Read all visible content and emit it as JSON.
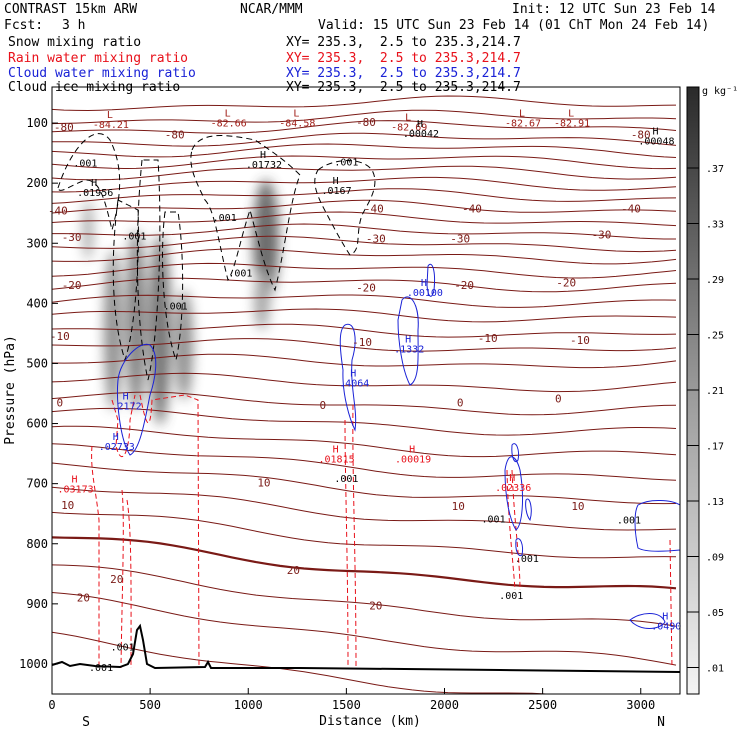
{
  "header": {
    "model": "CONTRAST 15km ARW",
    "org": "NCAR/MMM",
    "init": "Init: 12 UTC Sun 23 Feb 14",
    "fcst_label": "Fcst:",
    "fcst_value": "3 h",
    "valid": "Valid: 15 UTC Sun 23 Feb 14 (01 ChT Mon 24 Feb 14)"
  },
  "legend": [
    {
      "name": "Snow mixing ratio",
      "xy": "XY= 235.3,  2.5 to 235.3,214.7",
      "color": "#000000"
    },
    {
      "name": "Rain water mixing ratio",
      "xy": "XY= 235.3,  2.5 to 235.3,214.7",
      "color": "#e8101a"
    },
    {
      "name": "Cloud water mixing ratio",
      "xy": "XY= 235.3,  2.5 to 235.3,214.7",
      "color": "#1a22d6"
    },
    {
      "name": "Cloud ice mixing ratio",
      "xy": "XY= 235.3,  2.5 to 235.3,214.7",
      "color": "#000000"
    }
  ],
  "chart_data": {
    "type": "cross-section",
    "xlabel": "Distance (km)",
    "ylabel": "Pressure (hPa)",
    "xlim": [
      0,
      3200
    ],
    "ylim": [
      1050,
      40
    ],
    "x_ticks": [
      0,
      500,
      1000,
      1500,
      2000,
      2500,
      3000
    ],
    "y_ticks": [
      100,
      200,
      300,
      400,
      500,
      600,
      700,
      800,
      900,
      1000
    ],
    "left_end_label": "S",
    "right_end_label": "N",
    "colorbar": {
      "unit": "g kg⁻¹",
      "labels": [
        ".37",
        ".33",
        ".29",
        ".25",
        ".21",
        ".17",
        ".13",
        ".09",
        ".05",
        ".01"
      ]
    },
    "temperature_isotherms": {
      "labels": [
        {
          "x": 60,
          "p": 113,
          "text": "-80"
        },
        {
          "x": 625,
          "p": 126,
          "text": "-80"
        },
        {
          "x": 1600,
          "p": 105,
          "text": "-80"
        },
        {
          "x": 3000,
          "p": 126,
          "text": "-80"
        },
        {
          "x": 30,
          "p": 252,
          "text": "-40"
        },
        {
          "x": 1640,
          "p": 249,
          "text": "-40"
        },
        {
          "x": 2140,
          "p": 249,
          "text": "-40"
        },
        {
          "x": 2950,
          "p": 249,
          "text": "-40"
        },
        {
          "x": 100,
          "p": 296,
          "text": "-30"
        },
        {
          "x": 1650,
          "p": 299,
          "text": "-30"
        },
        {
          "x": 2080,
          "p": 299,
          "text": "-30"
        },
        {
          "x": 2800,
          "p": 292,
          "text": "-30"
        },
        {
          "x": 100,
          "p": 376,
          "text": "-20"
        },
        {
          "x": 1600,
          "p": 380,
          "text": "-20"
        },
        {
          "x": 2100,
          "p": 376,
          "text": "-20"
        },
        {
          "x": 2620,
          "p": 372,
          "text": "-20"
        },
        {
          "x": 1580,
          "p": 471,
          "text": "-10"
        },
        {
          "x": 2690,
          "p": 468,
          "text": "-10"
        },
        {
          "x": 40,
          "p": 461,
          "text": "-10"
        },
        {
          "x": 2220,
          "p": 464,
          "text": "-10"
        },
        {
          "x": 40,
          "p": 572,
          "text": "0"
        },
        {
          "x": 1380,
          "p": 576,
          "text": "0"
        },
        {
          "x": 2080,
          "p": 572,
          "text": "0"
        },
        {
          "x": 2580,
          "p": 565,
          "text": "0"
        },
        {
          "x": 1080,
          "p": 705,
          "text": "10"
        },
        {
          "x": 2070,
          "p": 744,
          "text": "10"
        },
        {
          "x": 2680,
          "p": 744,
          "text": "10"
        },
        {
          "x": 80,
          "p": 742,
          "text": "10"
        },
        {
          "x": 1230,
          "p": 850,
          "text": "20"
        },
        {
          "x": 1650,
          "p": 909,
          "text": "20"
        },
        {
          "x": 160,
          "p": 896,
          "text": "20"
        },
        {
          "x": 330,
          "p": 865,
          "text": "20"
        }
      ]
    },
    "extrema_labels": [
      {
        "x": 300,
        "p": 108,
        "kind": "L",
        "value": "-84.21"
      },
      {
        "x": 900,
        "p": 106,
        "kind": "L",
        "value": "-82.66"
      },
      {
        "x": 1250,
        "p": 106,
        "kind": "L",
        "value": "-84.58"
      },
      {
        "x": 1820,
        "p": 112,
        "kind": "L",
        "value": "-82.69"
      },
      {
        "x": 2400,
        "p": 106,
        "kind": "L",
        "value": "-82.67"
      },
      {
        "x": 2650,
        "p": 106,
        "kind": "L",
        "value": "-82.91"
      },
      {
        "x": 1880,
        "p": 123,
        "kind": "H",
        "value": ".00042"
      },
      {
        "x": 3080,
        "p": 136,
        "kind": "H",
        "value": ".00048"
      },
      {
        "x": 1080,
        "p": 175,
        "kind": "H",
        "value": ".01732"
      },
      {
        "x": 1450,
        "p": 218,
        "kind": "H",
        "value": ".0167"
      },
      {
        "x": 220,
        "p": 221,
        "kind": "H",
        "value": ".01956"
      },
      {
        "x": 1900,
        "p": 388,
        "kind": "H",
        "value": ".00100"
      },
      {
        "x": 1820,
        "p": 482,
        "kind": "H",
        "value": ".1332"
      },
      {
        "x": 1540,
        "p": 538,
        "kind": "H",
        "value": ".4064"
      },
      {
        "x": 380,
        "p": 577,
        "kind": "H",
        "value": ".2172"
      },
      {
        "x": 330,
        "p": 644,
        "kind": "H",
        "value": ".02733"
      },
      {
        "x": 1450,
        "p": 665,
        "kind": "H",
        "value": ".01815"
      },
      {
        "x": 1840,
        "p": 665,
        "kind": "H",
        "value": ".00019"
      },
      {
        "x": 120,
        "p": 715,
        "kind": "H",
        "value": ".03173"
      },
      {
        "x": 2350,
        "p": 712,
        "kind": "H",
        "value": ".02336"
      },
      {
        "x": 3130,
        "p": 943,
        "kind": "H",
        "value": ".0490"
      }
    ],
    "contour_value_labels": [
      {
        "x": 170,
        "p": 172,
        "text": ".001"
      },
      {
        "x": 1500,
        "p": 171,
        "text": ".001"
      },
      {
        "x": 420,
        "p": 294,
        "text": ".001"
      },
      {
        "x": 880,
        "p": 263,
        "text": ".001"
      },
      {
        "x": 960,
        "p": 355,
        "text": ".001"
      },
      {
        "x": 630,
        "p": 410,
        "text": ".001"
      },
      {
        "x": 1500,
        "p": 697,
        "text": ".001"
      },
      {
        "x": 2250,
        "p": 765,
        "text": ".001"
      },
      {
        "x": 2420,
        "p": 830,
        "text": ".001"
      },
      {
        "x": 2340,
        "p": 892,
        "text": ".001"
      },
      {
        "x": 360,
        "p": 978,
        "text": ".001"
      },
      {
        "x": 250,
        "p": 1012,
        "text": ".001"
      },
      {
        "x": 2940,
        "p": 766,
        "text": ".001"
      }
    ]
  }
}
